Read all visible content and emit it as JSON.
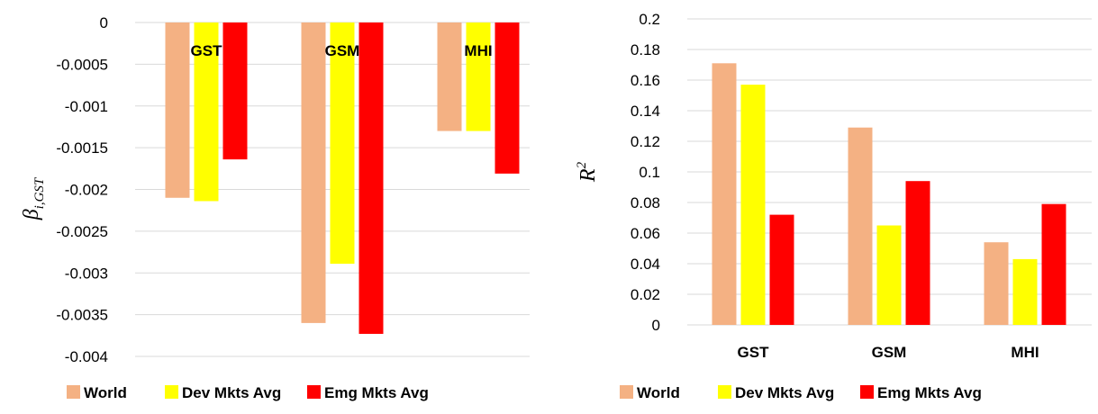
{
  "chart_data": [
    {
      "type": "bar",
      "categories": [
        "GST",
        "GSM",
        "MHI"
      ],
      "series": [
        {
          "name": "World",
          "values": [
            -0.0021,
            -0.0036,
            -0.0013
          ],
          "color": "#f4b183"
        },
        {
          "name": "Dev Mkts Avg",
          "values": [
            -0.00214,
            -0.00289,
            -0.0013
          ],
          "color": "#ffff00"
        },
        {
          "name": "Emg Mkts Avg",
          "values": [
            -0.00164,
            -0.00373,
            -0.00181
          ],
          "color": "#ff0000"
        }
      ],
      "ylabel": {
        "main": "β",
        "sub": "i,GST"
      },
      "ylim": [
        -0.004,
        0
      ],
      "yticks": [
        "0",
        "-0.0005",
        "-0.001",
        "-0.0015",
        "-0.002",
        "-0.0025",
        "-0.003",
        "-0.0035",
        "-0.004"
      ],
      "category_labels_position": "top",
      "grid": true,
      "legend_position": "bottom"
    },
    {
      "type": "bar",
      "categories": [
        "GST",
        "GSM",
        "MHI"
      ],
      "series": [
        {
          "name": "World",
          "values": [
            0.171,
            0.129,
            0.054
          ],
          "color": "#f4b183"
        },
        {
          "name": "Dev Mkts Avg",
          "values": [
            0.157,
            0.065,
            0.043
          ],
          "color": "#ffff00"
        },
        {
          "name": "Emg Mkts Avg",
          "values": [
            0.072,
            0.094,
            0.079
          ],
          "color": "#ff0000"
        }
      ],
      "ylabel": {
        "main": "R",
        "sup": "2"
      },
      "ylim": [
        0,
        0.2
      ],
      "yticks": [
        "0",
        "0.02",
        "0.04",
        "0.06",
        "0.08",
        "0.1",
        "0.12",
        "0.14",
        "0.16",
        "0.18",
        "0.2"
      ],
      "category_labels_position": "bottom",
      "grid": true,
      "legend_position": "bottom"
    }
  ]
}
